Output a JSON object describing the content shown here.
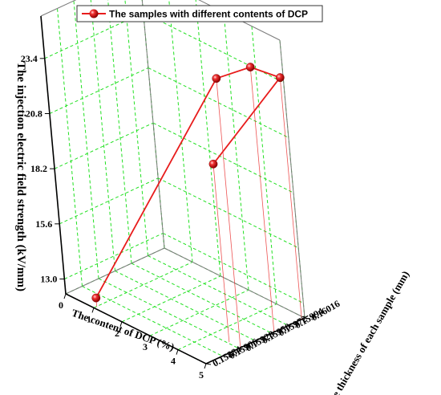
{
  "chart_data": {
    "type": "line",
    "projection": "3d",
    "title": "",
    "legend": {
      "label": "The samples with different contents of DCP",
      "position": "top"
    },
    "axes": {
      "x": {
        "label": "The content of DCP (%)",
        "ticks": [
          "0",
          "1",
          "2",
          "3",
          "4",
          "5"
        ],
        "range": [
          0,
          5
        ]
      },
      "y": {
        "label": "The thickness of each sample (mm)",
        "ticks": [
          "0.15884",
          "0.15906",
          "0.15928",
          "0.15950",
          "0.15972",
          "0.15994",
          "0.16016"
        ],
        "range": [
          0.15884,
          0.16016
        ]
      },
      "z": {
        "label": "The injection electric field strength (kV/mm)",
        "ticks": [
          "13.0",
          "15.6",
          "18.2",
          "20.8",
          "23.4"
        ],
        "range": [
          12.3,
          25.4
        ]
      }
    },
    "grid": true,
    "series": [
      {
        "name": "The samples with different contents of DCP",
        "color": "#e81c1c",
        "marker": "sphere",
        "drop_lines": true,
        "points": [
          {
            "x": 1,
            "y": 0.15888,
            "z": 12.7
          },
          {
            "x": 5,
            "y": 0.1593,
            "z": 25.0
          },
          {
            "x": 5,
            "y": 0.15975,
            "z": 24.8
          },
          {
            "x": 5,
            "y": 0.16012,
            "z": 23.7
          },
          {
            "x": 4.6,
            "y": 0.1593,
            "z": 20.7
          }
        ]
      }
    ]
  }
}
